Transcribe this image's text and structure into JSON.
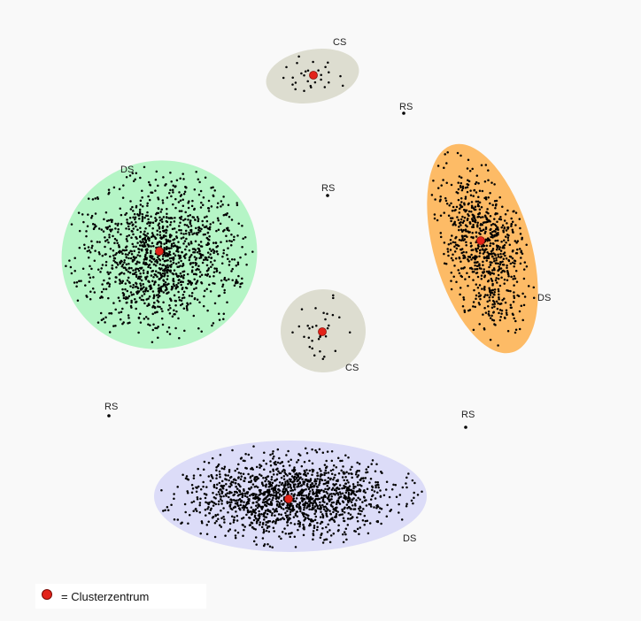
{
  "colors": {
    "green_cluster": "#b5f5c6",
    "orange_cluster": "#fdbb66",
    "blue_cluster": "#dcdcf8",
    "gray_cluster": "#ddddd0",
    "point": "#000000",
    "center": "#e3231a"
  },
  "labels": {
    "cs_top": "CS",
    "cs_mid": "CS",
    "rs_top_right": "RS",
    "rs_center": "RS",
    "rs_left": "RS",
    "rs_right": "RS",
    "ds_green": "DS",
    "ds_orange": "DS",
    "ds_blue": "DS"
  },
  "legend": {
    "text": "= Clusterzentrum"
  }
}
